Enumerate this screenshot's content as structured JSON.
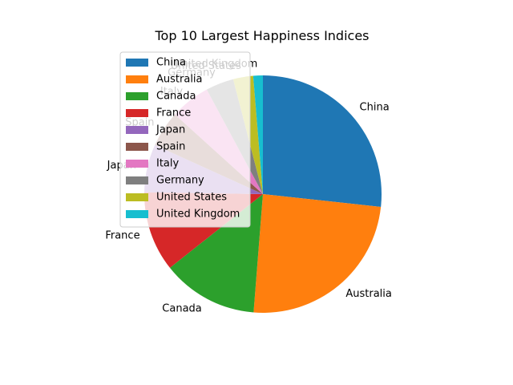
{
  "chart_data": {
    "type": "pie",
    "title": "Top 10 Largest Happiness Indices",
    "categories": [
      "China",
      "Australia",
      "Canada",
      "France",
      "Japan",
      "Spain",
      "Italy",
      "Germany",
      "United States",
      "United Kingdom"
    ],
    "values": [
      24.5,
      22.5,
      12.0,
      10.0,
      6.0,
      4.5,
      5.0,
      3.5,
      2.5,
      1.2
    ],
    "colors": [
      "#1f77b4",
      "#ff7f0e",
      "#2ca02c",
      "#d62728",
      "#9467bd",
      "#8c564b",
      "#e377c2",
      "#7f7f7f",
      "#bcbd22",
      "#17becf"
    ],
    "start_angle_deg": 90,
    "direction": "clockwise",
    "legend": "upper-left"
  }
}
